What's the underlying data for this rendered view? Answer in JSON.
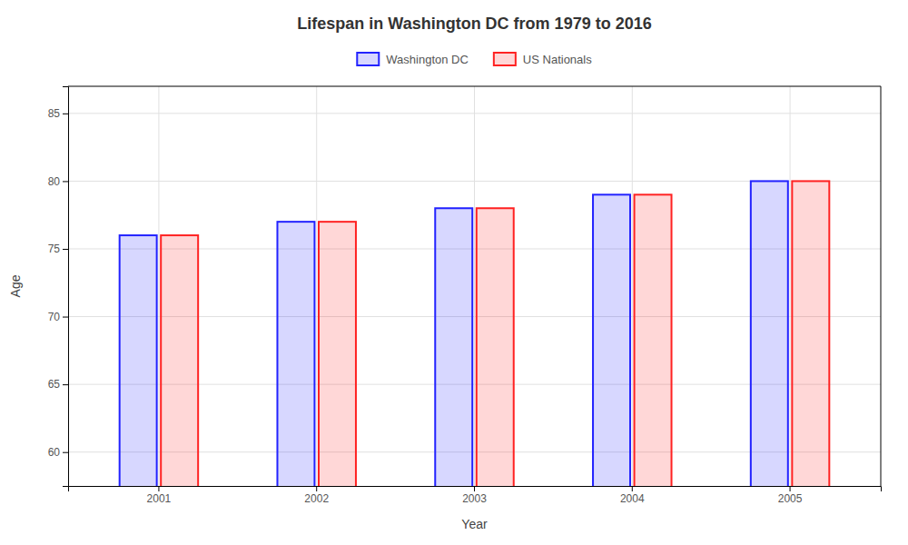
{
  "chart_data": {
    "type": "bar",
    "title": "Lifespan in Washington DC from 1979 to 2016",
    "x_label": "Year",
    "y_label": "Age",
    "categories": [
      "2001",
      "2002",
      "2003",
      "2004",
      "2005"
    ],
    "series": [
      {
        "name": "Washington DC",
        "color": "#2222ff",
        "values": [
          76.0,
          77.0,
          78.0,
          79.0,
          80.0
        ]
      },
      {
        "name": "US Nationals",
        "color": "#ff2222",
        "values": [
          76.0,
          77.0,
          78.0,
          79.0,
          80.0
        ]
      }
    ],
    "ylim": [
      57.5,
      87
    ],
    "yticks": [
      60,
      65,
      70,
      75,
      80,
      85
    ],
    "grid": true,
    "legend": "top"
  }
}
